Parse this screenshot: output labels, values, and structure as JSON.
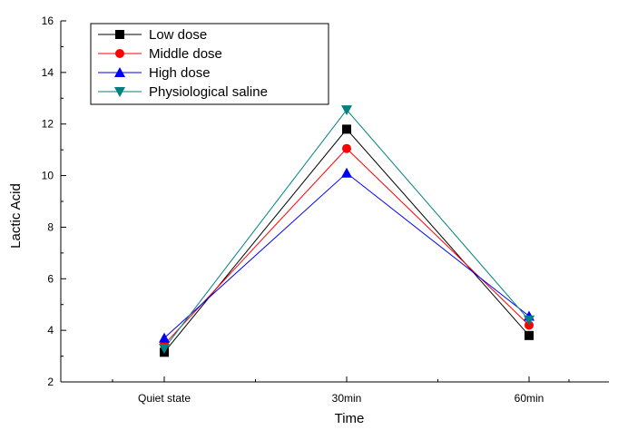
{
  "chart_data": {
    "type": "line",
    "title": "",
    "xlabel": "Time",
    "ylabel": "Lactic Acid",
    "categories": [
      "Quiet state",
      "30min",
      "60min"
    ],
    "ylim": [
      2,
      16
    ],
    "yticks": [
      "2",
      "4",
      "6",
      "8",
      "10",
      "12",
      "14",
      "16"
    ],
    "grid": false,
    "legend_position": "top-left",
    "series": [
      {
        "name": "Low dose",
        "values": [
          3.15,
          11.8,
          3.8
        ],
        "color": "#000000",
        "marker": "square"
      },
      {
        "name": "Middle dose",
        "values": [
          3.45,
          11.05,
          4.2
        ],
        "color": "#ff0000",
        "marker": "circle"
      },
      {
        "name": "High dose",
        "values": [
          3.7,
          10.1,
          4.55
        ],
        "color": "#0000ff",
        "marker": "triangle-up"
      },
      {
        "name": "Physiological saline",
        "values": [
          3.3,
          12.55,
          4.4
        ],
        "color": "#008080",
        "marker": "triangle-down"
      }
    ]
  }
}
